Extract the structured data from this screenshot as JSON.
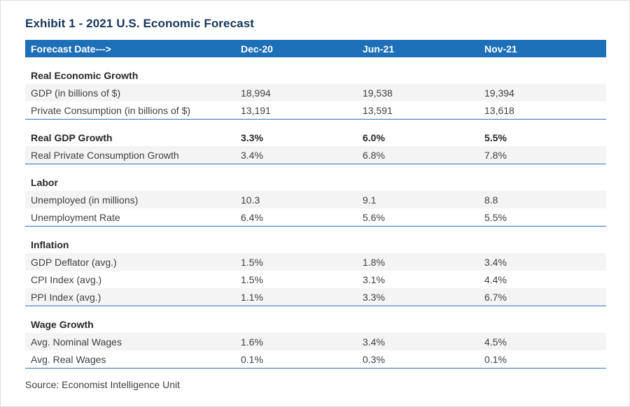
{
  "page": {
    "title": "Exhibit 1 - 2021 U.S. Economic Forecast",
    "source": "Source: Economist Intelligence Unit"
  },
  "chart_data": {
    "type": "table",
    "title": "Exhibit 1 - 2021 U.S. Economic Forecast",
    "header": {
      "label": "Forecast Date--->",
      "columns": [
        "Dec-20",
        "Jun-21",
        "Nov-21"
      ]
    },
    "sections": [
      {
        "name": "Real Economic Growth",
        "header_values": [
          "",
          "",
          ""
        ],
        "rows": [
          {
            "label": "GDP (in billions of $)",
            "values": [
              "18,994",
              "19,538",
              "19,394"
            ]
          },
          {
            "label": "Private Consumption (in billions of $)",
            "values": [
              "13,191",
              "13,591",
              "13,618"
            ]
          }
        ]
      },
      {
        "name": "Real GDP Growth",
        "header_values": [
          "3.3%",
          "6.0%",
          "5.5%"
        ],
        "rows": [
          {
            "label": "Real Private Consumption Growth",
            "values": [
              "3.4%",
              "6.8%",
              "7.8%"
            ]
          }
        ]
      },
      {
        "name": "Labor",
        "header_values": [
          "",
          "",
          ""
        ],
        "rows": [
          {
            "label": "Unemployed (in millions)",
            "values": [
              "10.3",
              "9.1",
              "8.8"
            ]
          },
          {
            "label": "Unemployment Rate",
            "values": [
              "6.4%",
              "5.6%",
              "5.5%"
            ]
          }
        ]
      },
      {
        "name": "Inflation",
        "header_values": [
          "",
          "",
          ""
        ],
        "rows": [
          {
            "label": "GDP Deflator (avg.)",
            "values": [
              "1.5%",
              "1.8%",
              "3.4%"
            ]
          },
          {
            "label": "CPI Index (avg.)",
            "values": [
              "1.5%",
              "3.1%",
              "4.4%"
            ]
          },
          {
            "label": "PPI Index (avg.)",
            "values": [
              "1.1%",
              "3.3%",
              "6.7%"
            ]
          }
        ]
      },
      {
        "name": "Wage Growth",
        "header_values": [
          "",
          "",
          ""
        ],
        "rows": [
          {
            "label": "Avg. Nominal Wages",
            "values": [
              "1.6%",
              "3.4%",
              "4.5%"
            ]
          },
          {
            "label": "Avg. Real Wages",
            "values": [
              "0.1%",
              "0.3%",
              "0.1%"
            ]
          }
        ]
      }
    ]
  },
  "colors": {
    "header_bg": "#1d70b7",
    "title": "#16365c",
    "row_alt_bg": "#f4f4f4",
    "section_border": "#2e75b6",
    "text": "#3f3f3f"
  }
}
